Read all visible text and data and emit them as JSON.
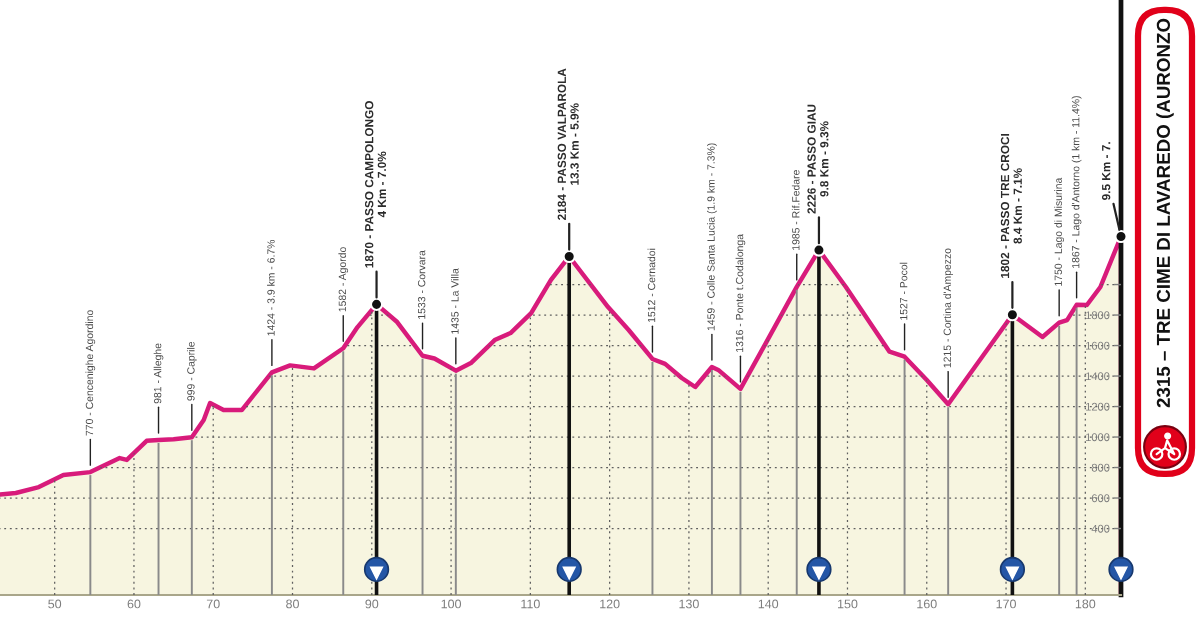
{
  "chart_data": {
    "type": "area",
    "title": "2315 – TRE CIME DI LAVAREDO (AURONZO",
    "x": [
      42.6,
      45.1,
      48.0,
      51.1,
      54.5,
      58.2,
      59.1,
      61.6,
      63.1,
      65.0,
      67.3,
      68.8,
      69.6,
      71.3,
      73.6,
      77.4,
      79.7,
      82.7,
      86.4,
      88.2,
      90.6,
      93.2,
      96.4,
      97.9,
      100.6,
      102.5,
      105.5,
      107.5,
      110.1,
      112.6,
      114.9,
      119.8,
      122.4,
      125.4,
      127.0,
      129.1,
      130.8,
      132.9,
      133.7,
      136.5,
      139.7,
      143.6,
      146.4,
      149.8,
      155.3,
      157.2,
      160.0,
      162.7,
      166.7,
      170.8,
      171.7,
      174.6,
      176.7,
      177.7,
      178.9,
      180.2,
      181.9,
      184.5
    ],
    "series": [
      {
        "color": "#f7f5e0",
        "values": [
          620,
          633,
          672,
          751,
          770,
          862,
          850,
          975,
          981,
          985,
          999,
          1111,
          1223,
          1177,
          1177,
          1424,
          1470,
          1450,
          1582,
          1721,
          1870,
          1754,
          1533,
          1515,
          1435,
          1485,
          1636,
          1682,
          1813,
          2030,
          2184,
          1852,
          1702,
          1512,
          1480,
          1387,
          1328,
          1459,
          1440,
          1316,
          1616,
          1985,
          2226,
          1984,
          1560,
          1527,
          1374,
          1215,
          1505,
          1802,
          1767,
          1656,
          1750,
          1767,
          1867,
          1866,
          1984,
          2315
        ]
      }
    ],
    "xlim": [
      42.6,
      184.5
    ],
    "ylim": [
      -36,
      3866
    ],
    "xticks": [
      50,
      60,
      70,
      80,
      90,
      100,
      110,
      120,
      130,
      140,
      150,
      160,
      170,
      180
    ],
    "yticks": [
      400,
      600,
      800,
      1000,
      1200,
      1400,
      1600,
      1800,
      {
        "value": 2000,
        "label": null
      }
    ],
    "grid": true,
    "ref_lines": [
      {
        "axis": "x",
        "value": 54.5,
        "color": "#8a8a8a"
      },
      {
        "axis": "x",
        "value": 63.1,
        "color": "#8a8a8a"
      },
      {
        "axis": "x",
        "value": 67.3,
        "color": "#8a8a8a"
      },
      {
        "axis": "x",
        "value": 77.4,
        "color": "#8a8a8a"
      },
      {
        "axis": "x",
        "value": 86.4,
        "color": "#8a8a8a"
      },
      {
        "axis": "x",
        "value": 90.6,
        "color": "#111111"
      },
      {
        "axis": "x",
        "value": 96.4,
        "color": "#8a8a8a"
      },
      {
        "axis": "x",
        "value": 100.6,
        "color": "#8a8a8a"
      },
      {
        "axis": "x",
        "value": 114.9,
        "color": "#111111"
      },
      {
        "axis": "x",
        "value": 125.4,
        "color": "#8a8a8a"
      },
      {
        "axis": "x",
        "value": 132.9,
        "color": "#8a8a8a"
      },
      {
        "axis": "x",
        "value": 136.5,
        "color": "#8a8a8a"
      },
      {
        "axis": "x",
        "value": 143.6,
        "color": "#8a8a8a"
      },
      {
        "axis": "x",
        "value": 146.4,
        "color": "#111111"
      },
      {
        "axis": "x",
        "value": 157.2,
        "color": "#8a8a8a"
      },
      {
        "axis": "x",
        "value": 162.7,
        "color": "#8a8a8a"
      },
      {
        "axis": "x",
        "value": 170.8,
        "color": "#111111"
      },
      {
        "axis": "x",
        "value": 176.7,
        "color": "#8a8a8a"
      },
      {
        "axis": "x",
        "value": 178.9,
        "color": "#8a8a8a"
      }
    ],
    "annotations": [
      {
        "text": "770 - Cencenighe Agordino",
        "x": 54.5,
        "y": 770
      },
      {
        "text": "981 - Alleghe",
        "x": 63.1,
        "y": 981
      },
      {
        "text": "999 - Caprile",
        "x": 67.3,
        "y": 999
      },
      {
        "text": "1424 - 3.9 km - 6.7%",
        "x": 77.4,
        "y": 1424
      },
      {
        "text": "1582 - Agordo",
        "x": 86.4,
        "y": 1582
      },
      {
        "text": "1870 - PASSO CAMPOLONGO\n4 Km - 7.0%",
        "x": 90.6,
        "y": 1870
      },
      {
        "text": "1533 - Corvara",
        "x": 96.4,
        "y": 1533
      },
      {
        "text": "1435 - La Villa",
        "x": 100.6,
        "y": 1435
      },
      {
        "text": "2184 - PASSO VALPAROLA\n13.3 Km - 5.9%",
        "x": 114.9,
        "y": 2184
      },
      {
        "text": "1512 - Cernadoi",
        "x": 125.4,
        "y": 1512
      },
      {
        "text": "1459 - Colle Santa Lucia (1.9 km - 7.3%)",
        "x": 132.9,
        "y": 1459
      },
      {
        "text": "1316 - Ponte t.Codalonga",
        "x": 136.5,
        "y": 1316
      },
      {
        "text": "1985 - Rif.Fedare",
        "x": 143.6,
        "y": 1985
      },
      {
        "text": "2226 - PASSO GIAU\n9.8 Km - 9.3%",
        "x": 146.4,
        "y": 2226
      },
      {
        "text": "1527 - Pocol",
        "x": 157.2,
        "y": 1527
      },
      {
        "text": "1215 - Cortina d'Ampezzo",
        "x": 162.7,
        "y": 1215
      },
      {
        "text": "1802 - PASSO TRE CROCI\n8.4 Km - 7.1%",
        "x": 170.8,
        "y": 1802
      },
      {
        "text": "1750 - Lago di Misurina",
        "x": 176.7,
        "y": 1750
      },
      {
        "text": "1867 - Lago d'Antorno (1 km - 11.4%)",
        "x": 178.9,
        "y": 1867
      },
      {
        "text": "9.5 Km - 7.",
        "x": 184.5,
        "y": 2315
      }
    ]
  }
}
